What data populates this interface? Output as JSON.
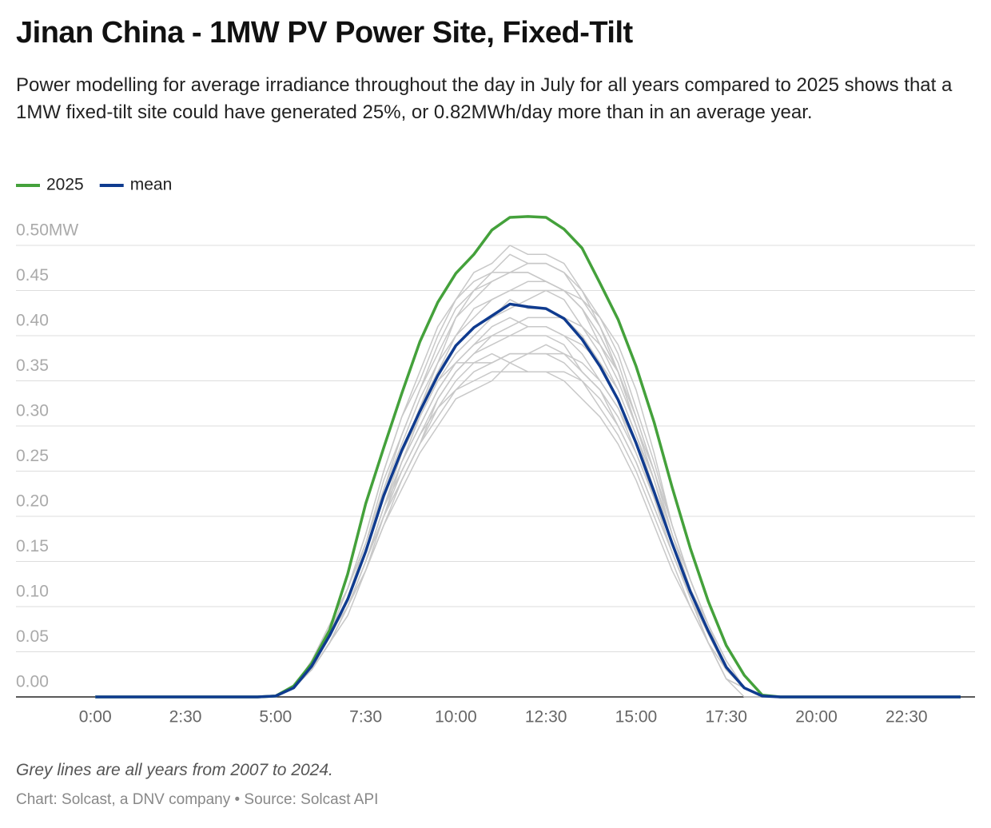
{
  "chart_data": {
    "type": "line",
    "title": "Jinan China - 1MW PV Power Site, Fixed-Tilt",
    "subtitle": "Power modelling for average irradiance throughout the day in July for all years compared to 2025 shows that a 1MW fixed-tilt site could have generated 25%, or 0.82MWh/day more than in an average year.",
    "note": "Grey lines are all years from 2007 to 2024.",
    "source": "Chart: Solcast, a DNV company • Source: Solcast API",
    "x": [
      0,
      0.5,
      1,
      1.5,
      2,
      2.5,
      3,
      3.5,
      4,
      4.5,
      5,
      5.5,
      6,
      6.5,
      7,
      7.5,
      8,
      8.5,
      9,
      9.5,
      10,
      10.5,
      11,
      11.5,
      12,
      12.5,
      13,
      13.5,
      14,
      14.5,
      15,
      15.5,
      16,
      16.5,
      17,
      17.5,
      18,
      18.5,
      19,
      19.5,
      20,
      20.5,
      21,
      21.5,
      22,
      22.5,
      23,
      23.5,
      24
    ],
    "xlim": [
      -2.2,
      24.4
    ],
    "xticks": [
      {
        "value": 0,
        "label": "0:00"
      },
      {
        "value": 2.5,
        "label": "2:30"
      },
      {
        "value": 5,
        "label": "5:00"
      },
      {
        "value": 7.5,
        "label": "7:30"
      },
      {
        "value": 10,
        "label": "10:00"
      },
      {
        "value": 12.5,
        "label": "12:30"
      },
      {
        "value": 15,
        "label": "15:00"
      },
      {
        "value": 17.5,
        "label": "17:30"
      },
      {
        "value": 20,
        "label": "20:00"
      },
      {
        "value": 22.5,
        "label": "22:30"
      }
    ],
    "ylim": [
      0,
      0.54
    ],
    "yticks": [
      {
        "value": 0,
        "label": "0.00"
      },
      0.05,
      {
        "value": 0.1,
        "label": "0.10"
      },
      0.15,
      {
        "value": 0.2,
        "label": "0.20"
      },
      0.25,
      {
        "value": 0.3,
        "label": "0.30"
      },
      0.35,
      {
        "value": 0.4,
        "label": "0.40"
      },
      0.45,
      {
        "value": 0.5,
        "label": "0.50MW"
      }
    ],
    "grid": true,
    "legend": "top-left",
    "series": [
      {
        "color": "#c8c8c8",
        "values": [
          0,
          0,
          0,
          0,
          0,
          0,
          0,
          0,
          0,
          0,
          0,
          0.01,
          0.03,
          0.06,
          0.09,
          0.14,
          0.19,
          0.23,
          0.27,
          0.3,
          0.33,
          0.34,
          0.35,
          0.37,
          0.36,
          0.36,
          0.35,
          0.33,
          0.31,
          0.28,
          0.24,
          0.19,
          0.14,
          0.1,
          0.06,
          0.03,
          0.01,
          0,
          0,
          0,
          0,
          0,
          0,
          0,
          0,
          0,
          0,
          0,
          0
        ]
      },
      {
        "color": "#c8c8c8",
        "values": [
          0,
          0,
          0,
          0,
          0,
          0,
          0,
          0,
          0,
          0,
          0,
          0.01,
          0.03,
          0.06,
          0.1,
          0.14,
          0.2,
          0.24,
          0.28,
          0.31,
          0.34,
          0.36,
          0.37,
          0.38,
          0.38,
          0.38,
          0.37,
          0.35,
          0.32,
          0.29,
          0.25,
          0.2,
          0.15,
          0.1,
          0.06,
          0.03,
          0.01,
          0,
          0,
          0,
          0,
          0,
          0,
          0,
          0,
          0,
          0,
          0,
          0
        ]
      },
      {
        "color": "#c8c8c8",
        "values": [
          0,
          0,
          0,
          0,
          0,
          0,
          0,
          0,
          0,
          0,
          0,
          0.01,
          0.03,
          0.06,
          0.1,
          0.15,
          0.21,
          0.25,
          0.29,
          0.33,
          0.36,
          0.38,
          0.39,
          0.4,
          0.4,
          0.4,
          0.39,
          0.36,
          0.34,
          0.3,
          0.26,
          0.21,
          0.16,
          0.11,
          0.07,
          0.03,
          0.01,
          0,
          0,
          0,
          0,
          0,
          0,
          0,
          0,
          0,
          0,
          0,
          0
        ]
      },
      {
        "color": "#c8c8c8",
        "values": [
          0,
          0,
          0,
          0,
          0,
          0,
          0,
          0,
          0,
          0,
          0,
          0.01,
          0.03,
          0.07,
          0.1,
          0.15,
          0.21,
          0.26,
          0.3,
          0.34,
          0.37,
          0.39,
          0.41,
          0.42,
          0.41,
          0.41,
          0.4,
          0.38,
          0.35,
          0.32,
          0.27,
          0.22,
          0.16,
          0.11,
          0.07,
          0.03,
          0.01,
          0,
          0,
          0,
          0,
          0,
          0,
          0,
          0,
          0,
          0,
          0,
          0
        ]
      },
      {
        "color": "#c8c8c8",
        "values": [
          0,
          0,
          0,
          0,
          0,
          0,
          0,
          0,
          0,
          0,
          0,
          0.01,
          0.03,
          0.07,
          0.11,
          0.16,
          0.22,
          0.27,
          0.32,
          0.36,
          0.39,
          0.41,
          0.42,
          0.44,
          0.43,
          0.43,
          0.42,
          0.4,
          0.37,
          0.33,
          0.28,
          0.23,
          0.17,
          0.12,
          0.07,
          0.03,
          0.01,
          0,
          0,
          0,
          0,
          0,
          0,
          0,
          0,
          0,
          0,
          0,
          0
        ]
      },
      {
        "color": "#c8c8c8",
        "values": [
          0,
          0,
          0,
          0,
          0,
          0,
          0,
          0,
          0,
          0,
          0,
          0.01,
          0.04,
          0.07,
          0.11,
          0.17,
          0.23,
          0.28,
          0.33,
          0.37,
          0.4,
          0.43,
          0.44,
          0.45,
          0.45,
          0.45,
          0.44,
          0.41,
          0.38,
          0.34,
          0.29,
          0.24,
          0.18,
          0.12,
          0.08,
          0.03,
          0.01,
          0,
          0,
          0,
          0,
          0,
          0,
          0,
          0,
          0,
          0,
          0,
          0
        ]
      },
      {
        "color": "#c8c8c8",
        "values": [
          0,
          0,
          0,
          0,
          0,
          0,
          0,
          0,
          0,
          0,
          0,
          0.01,
          0.04,
          0.07,
          0.12,
          0.17,
          0.24,
          0.29,
          0.34,
          0.38,
          0.42,
          0.44,
          0.46,
          0.47,
          0.47,
          0.46,
          0.45,
          0.43,
          0.4,
          0.36,
          0.3,
          0.25,
          0.18,
          0.13,
          0.08,
          0.04,
          0.01,
          0,
          0,
          0,
          0,
          0,
          0,
          0,
          0,
          0,
          0,
          0,
          0
        ]
      },
      {
        "color": "#c8c8c8",
        "values": [
          0,
          0,
          0,
          0,
          0,
          0,
          0,
          0,
          0,
          0,
          0,
          0.01,
          0.04,
          0.08,
          0.12,
          0.18,
          0.25,
          0.31,
          0.35,
          0.4,
          0.44,
          0.46,
          0.47,
          0.49,
          0.48,
          0.48,
          0.47,
          0.44,
          0.41,
          0.37,
          0.31,
          0.25,
          0.19,
          0.13,
          0.08,
          0.04,
          0.01,
          0,
          0,
          0,
          0,
          0,
          0,
          0,
          0,
          0,
          0,
          0,
          0
        ]
      },
      {
        "color": "#c8c8c8",
        "values": [
          0,
          0,
          0,
          0,
          0,
          0,
          0,
          0,
          0,
          0,
          0,
          0.01,
          0.04,
          0.08,
          0.12,
          0.18,
          0.25,
          0.31,
          0.36,
          0.41,
          0.44,
          0.47,
          0.48,
          0.5,
          0.49,
          0.49,
          0.48,
          0.45,
          0.42,
          0.38,
          0.32,
          0.26,
          0.19,
          0.13,
          0.08,
          0.04,
          0.01,
          0,
          0,
          0,
          0,
          0,
          0,
          0,
          0,
          0,
          0,
          0,
          0
        ]
      },
      {
        "color": "#c8c8c8",
        "values": [
          0,
          0,
          0,
          0,
          0,
          0,
          0,
          0,
          0,
          0,
          0,
          0.01,
          0.03,
          0.06,
          0.1,
          0.15,
          0.2,
          0.25,
          0.29,
          0.32,
          0.34,
          0.35,
          0.36,
          0.36,
          0.36,
          0.36,
          0.36,
          0.35,
          0.33,
          0.3,
          0.26,
          0.21,
          0.16,
          0.11,
          0.06,
          0.02,
          0.01,
          0,
          0,
          0,
          0,
          0,
          0,
          0,
          0,
          0,
          0,
          0,
          0
        ]
      },
      {
        "color": "#c8c8c8",
        "values": [
          0,
          0,
          0,
          0,
          0,
          0,
          0,
          0,
          0,
          0,
          0,
          0.01,
          0.03,
          0.07,
          0.11,
          0.16,
          0.22,
          0.27,
          0.31,
          0.35,
          0.37,
          0.37,
          0.38,
          0.37,
          0.38,
          0.39,
          0.38,
          0.37,
          0.35,
          0.32,
          0.28,
          0.22,
          0.17,
          0.11,
          0.07,
          0.03,
          0.01,
          0,
          0,
          0,
          0,
          0,
          0,
          0,
          0,
          0,
          0,
          0,
          0
        ]
      },
      {
        "color": "#c8c8c8",
        "values": [
          0,
          0,
          0,
          0,
          0,
          0,
          0,
          0,
          0,
          0,
          0,
          0.01,
          0.03,
          0.07,
          0.11,
          0.16,
          0.22,
          0.27,
          0.32,
          0.37,
          0.42,
          0.45,
          0.46,
          0.47,
          0.47,
          0.46,
          0.45,
          0.43,
          0.4,
          0.36,
          0.3,
          0.24,
          0.17,
          0.11,
          0.07,
          0.03,
          0.01,
          0,
          0,
          0,
          0,
          0,
          0,
          0,
          0,
          0,
          0,
          0,
          0
        ]
      },
      {
        "color": "#c8c8c8",
        "values": [
          0,
          0,
          0,
          0,
          0,
          0,
          0,
          0,
          0,
          0,
          0,
          0.01,
          0.03,
          0.06,
          0.1,
          0.15,
          0.2,
          0.26,
          0.31,
          0.35,
          0.38,
          0.4,
          0.42,
          0.43,
          0.44,
          0.45,
          0.45,
          0.44,
          0.42,
          0.39,
          0.34,
          0.27,
          0.19,
          0.13,
          0.08,
          0.04,
          0.01,
          0,
          0,
          0,
          0,
          0,
          0,
          0,
          0,
          0,
          0,
          0,
          0
        ]
      },
      {
        "color": "#c8c8c8",
        "values": [
          0,
          0,
          0,
          0,
          0,
          0,
          0,
          0,
          0,
          0,
          0,
          0.01,
          0.03,
          0.06,
          0.1,
          0.14,
          0.19,
          0.24,
          0.28,
          0.33,
          0.36,
          0.38,
          0.4,
          0.41,
          0.42,
          0.42,
          0.42,
          0.41,
          0.39,
          0.36,
          0.31,
          0.25,
          0.18,
          0.12,
          0.07,
          0.03,
          0.01,
          0,
          0,
          0,
          0,
          0,
          0,
          0,
          0,
          0,
          0,
          0,
          0
        ]
      },
      {
        "color": "#c8c8c8",
        "values": [
          0,
          0,
          0,
          0,
          0,
          0,
          0,
          0,
          0,
          0,
          0,
          0.01,
          0.04,
          0.07,
          0.12,
          0.17,
          0.23,
          0.29,
          0.34,
          0.39,
          0.43,
          0.45,
          0.47,
          0.47,
          0.48,
          0.48,
          0.47,
          0.45,
          0.41,
          0.36,
          0.3,
          0.24,
          0.17,
          0.11,
          0.06,
          0.02,
          0.01,
          0,
          0,
          0,
          0,
          0,
          0,
          0,
          0,
          0,
          0,
          0,
          0
        ]
      },
      {
        "color": "#c8c8c8",
        "values": [
          0,
          0,
          0,
          0,
          0,
          0,
          0,
          0,
          0,
          0,
          0,
          0.01,
          0.03,
          0.06,
          0.1,
          0.15,
          0.21,
          0.26,
          0.3,
          0.34,
          0.37,
          0.39,
          0.4,
          0.4,
          0.41,
          0.41,
          0.4,
          0.39,
          0.37,
          0.34,
          0.29,
          0.23,
          0.17,
          0.12,
          0.07,
          0.03,
          0.01,
          0,
          0,
          0,
          0,
          0,
          0,
          0,
          0,
          0,
          0,
          0,
          0
        ]
      },
      {
        "color": "#c8c8c8",
        "values": [
          0,
          0,
          0,
          0,
          0,
          0,
          0,
          0,
          0,
          0,
          0,
          0.01,
          0.03,
          0.06,
          0.1,
          0.15,
          0.2,
          0.24,
          0.28,
          0.32,
          0.35,
          0.37,
          0.37,
          0.38,
          0.38,
          0.38,
          0.38,
          0.36,
          0.34,
          0.31,
          0.27,
          0.22,
          0.16,
          0.11,
          0.06,
          0.02,
          0,
          0,
          0,
          0,
          0,
          0,
          0,
          0,
          0,
          0,
          0,
          0,
          0
        ]
      },
      {
        "color": "#c8c8c8",
        "values": [
          0,
          0,
          0,
          0,
          0,
          0,
          0,
          0,
          0,
          0,
          0,
          0.01,
          0.03,
          0.06,
          0.1,
          0.15,
          0.21,
          0.27,
          0.32,
          0.36,
          0.4,
          0.42,
          0.44,
          0.45,
          0.46,
          0.46,
          0.45,
          0.43,
          0.39,
          0.35,
          0.3,
          0.24,
          0.18,
          0.12,
          0.07,
          0.03,
          0.01,
          0,
          0,
          0,
          0,
          0,
          0,
          0,
          0,
          0,
          0,
          0,
          0
        ]
      },
      {
        "name": "2025",
        "color": "#44a13b",
        "values": [
          0,
          0,
          0,
          0,
          0,
          0,
          0,
          0,
          0,
          0,
          0.001,
          0.012,
          0.037,
          0.074,
          0.136,
          0.214,
          0.276,
          0.336,
          0.393,
          0.437,
          0.469,
          0.49,
          0.517,
          0.531,
          0.532,
          0.531,
          0.518,
          0.497,
          0.458,
          0.418,
          0.366,
          0.304,
          0.232,
          0.165,
          0.106,
          0.057,
          0.024,
          0.002,
          0,
          0,
          0,
          0,
          0,
          0,
          0,
          0,
          0,
          0,
          0
        ]
      },
      {
        "name": "mean",
        "color": "#0f3b8f",
        "values": [
          0,
          0,
          0,
          0,
          0,
          0,
          0,
          0,
          0,
          0,
          0.001,
          0.01,
          0.034,
          0.068,
          0.108,
          0.161,
          0.223,
          0.273,
          0.316,
          0.356,
          0.389,
          0.409,
          0.422,
          0.435,
          0.432,
          0.43,
          0.419,
          0.396,
          0.366,
          0.329,
          0.281,
          0.227,
          0.17,
          0.117,
          0.073,
          0.033,
          0.01,
          0.001,
          0,
          0,
          0,
          0,
          0,
          0,
          0,
          0,
          0,
          0,
          0
        ]
      }
    ]
  }
}
